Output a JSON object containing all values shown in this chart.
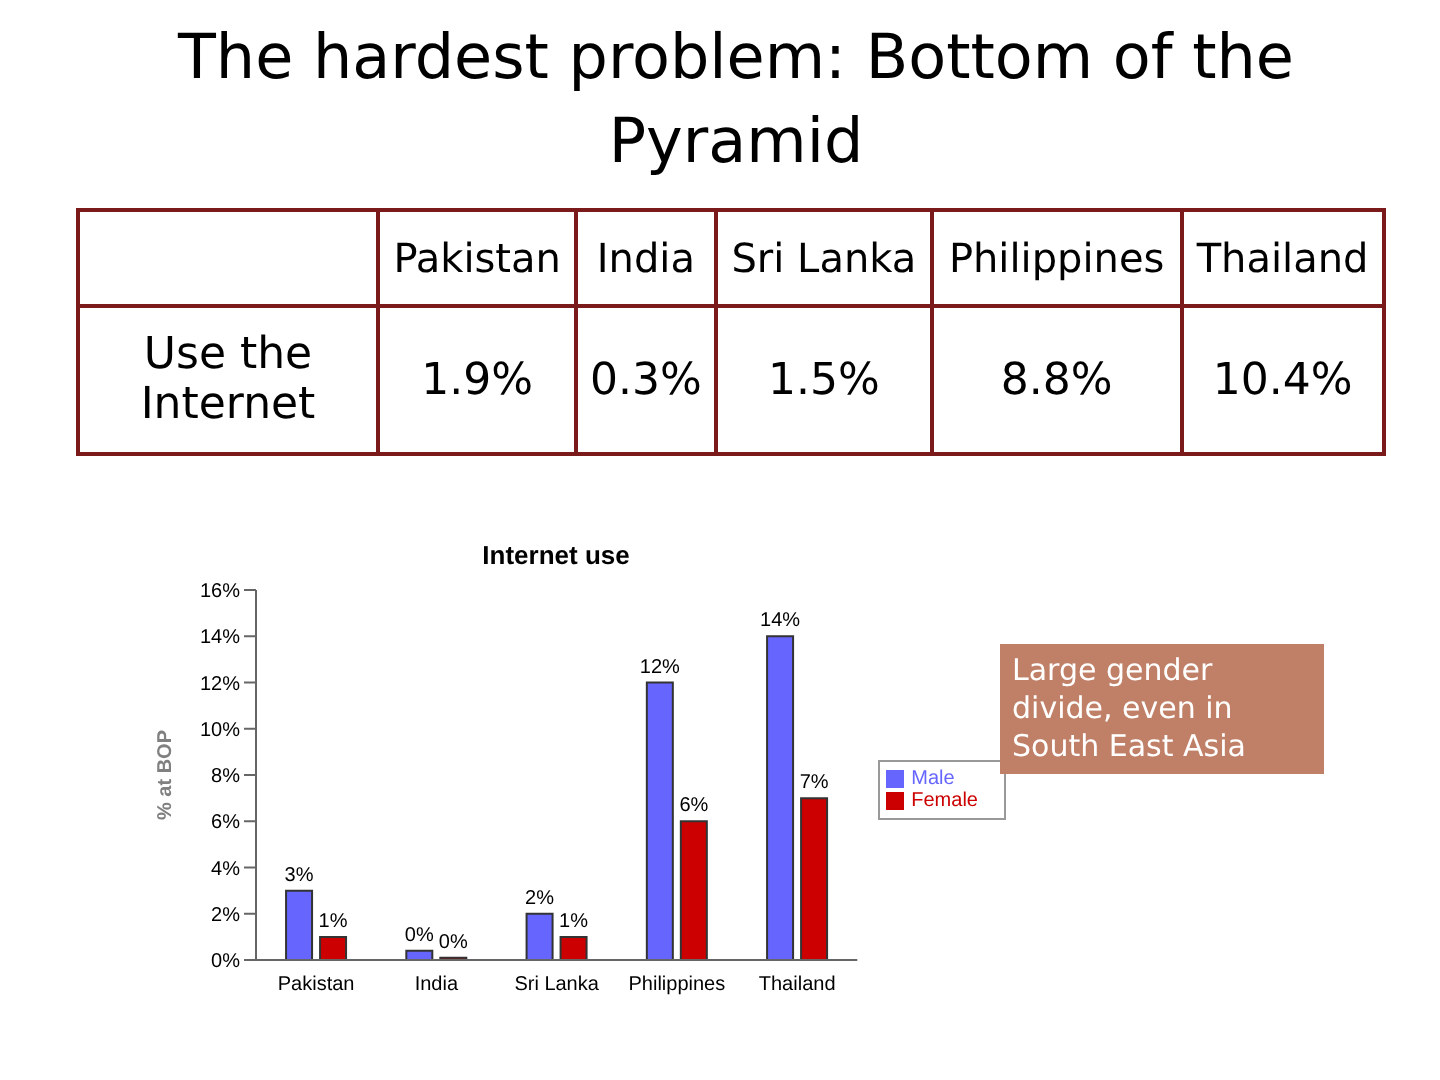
{
  "chart_data": [
    {
      "type": "other",
      "title": "The hardest problem:  Bottom of the Pyramid",
      "ylabel": "Use the Internet",
      "categories": [
        "Pakistan",
        "India",
        "Sri Lanka",
        "Philippines",
        "Thailand"
      ],
      "value_labels": [
        "1.9%",
        "0.3%",
        "1.5%",
        "8.8%",
        "10.4%"
      ]
    },
    {
      "type": "bar",
      "title": "Internet use",
      "ylabel": "% at BOP",
      "categories": [
        "Pakistan",
        "India",
        "Sri Lanka",
        "Philippines",
        "Thailand"
      ],
      "series": [
        {
          "name": "Male",
          "color": "#6666ff",
          "values": [
            3,
            0.4,
            2,
            12,
            14
          ],
          "value_labels": [
            "3%",
            "0%",
            "2%",
            "12%",
            "14%"
          ]
        },
        {
          "name": "Female",
          "color": "#cc0000",
          "values": [
            1,
            0.1,
            1,
            6,
            7
          ],
          "value_labels": [
            "1%",
            "0%",
            "1%",
            "6%",
            "7%"
          ]
        }
      ],
      "ylim": [
        0,
        16
      ],
      "yticks": [
        {
          "value": 0,
          "label": "0%"
        },
        {
          "value": 2,
          "label": "2%"
        },
        {
          "value": 4,
          "label": "4%"
        },
        {
          "value": 6,
          "label": "6%"
        },
        {
          "value": 8,
          "label": "8%"
        },
        {
          "value": 10,
          "label": "10%"
        },
        {
          "value": 12,
          "label": "12%"
        },
        {
          "value": 14,
          "label": "14%"
        },
        {
          "value": 16,
          "label": "16%"
        }
      ],
      "legend": "right",
      "grid": false,
      "annotations": [
        "Large gender divide, even in South East Asia"
      ]
    }
  ]
}
